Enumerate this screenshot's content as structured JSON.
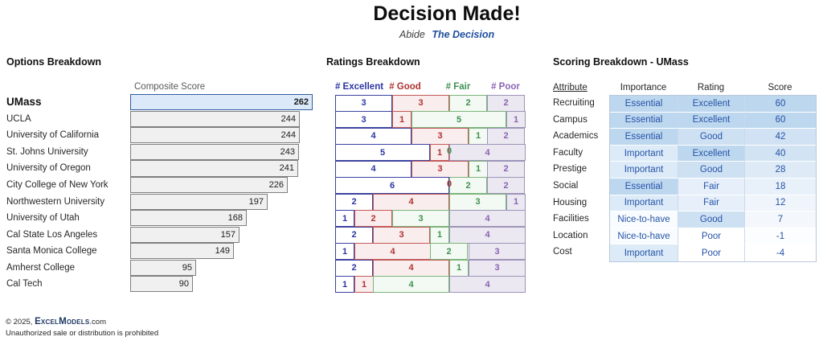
{
  "header": {
    "title": "Decision Made!",
    "subtitle_prefix": "Abide",
    "subtitle_emphasis": "The Decision"
  },
  "colors": {
    "accent_blue": "#1f4e9e",
    "highlight_bar_fill": "#dbe9f8",
    "highlight_bar_border": "#2f5b9d",
    "bar_fill": "#f0f0f0",
    "bar_border": "#7f7f7f",
    "cell_blue_dark": "#bdd7ee"
  },
  "chart_data": [
    {
      "type": "bar",
      "title": "Options Breakdown",
      "axis_label": "Composite Score",
      "orientation": "horizontal",
      "categories": [
        "UMass",
        "UCLA",
        "University of California",
        "St. Johns University",
        "University of Oregon",
        "City College of New York",
        "Northwestern University",
        "University of Utah",
        "Cal State Los Angeles",
        "Santa Monica College",
        "Amherst College",
        "Cal Tech"
      ],
      "values": [
        262,
        244,
        244,
        243,
        241,
        226,
        197,
        168,
        157,
        149,
        95,
        90
      ],
      "highlight_index": 0,
      "xlim": [
        0,
        262
      ]
    },
    {
      "type": "bar",
      "subtype": "stacked-horizontal",
      "title": "Ratings Breakdown",
      "categories": [
        "UMass",
        "UCLA",
        "University of California",
        "St. Johns University",
        "University of Oregon",
        "City College of New York",
        "Northwestern University",
        "University of Utah",
        "Cal State Los Angeles",
        "Santa Monica College",
        "Amherst College",
        "Cal Tech"
      ],
      "x_total": 10,
      "series": [
        {
          "name": "# Excellent",
          "text_color": "#2b35a3",
          "border_color": "#3c43a0",
          "fill_color": "#ffffff",
          "values": [
            3,
            3,
            4,
            5,
            4,
            6,
            2,
            1,
            2,
            1,
            2,
            1
          ]
        },
        {
          "name": "# Good",
          "text_color": "#b03232",
          "border_color": "#c25a5a",
          "fill_color": "#faeded",
          "values": [
            3,
            1,
            3,
            1,
            3,
            0,
            4,
            2,
            3,
            4,
            4,
            1
          ]
        },
        {
          "name": "# Fair",
          "text_color": "#3e9150",
          "border_color": "#7bb47b",
          "fill_color": "#f3faf3",
          "values": [
            2,
            5,
            1,
            0,
            1,
            2,
            3,
            3,
            1,
            2,
            1,
            4
          ]
        },
        {
          "name": "# Poor",
          "text_color": "#8a63b3",
          "border_color": "#9d94b8",
          "fill_color": "#ebe8f1",
          "values": [
            2,
            1,
            2,
            4,
            2,
            2,
            1,
            4,
            4,
            3,
            3,
            4
          ]
        }
      ]
    },
    {
      "type": "table",
      "title": "Scoring Breakdown - UMass",
      "columns": [
        "Attribute",
        "Importance",
        "Rating",
        "Score"
      ],
      "rows": [
        {
          "attribute": "Recruiting",
          "importance": "Essential",
          "rating": "Excellent",
          "score": 60,
          "importance_bg": "#bdd7ee",
          "rating_bg": "#bdd7ee",
          "score_bg": "#bdd7ee"
        },
        {
          "attribute": "Campus",
          "importance": "Essential",
          "rating": "Excellent",
          "score": 60,
          "importance_bg": "#bdd7ee",
          "rating_bg": "#bdd7ee",
          "score_bg": "#bdd7ee"
        },
        {
          "attribute": "Academics",
          "importance": "Essential",
          "rating": "Good",
          "score": 42,
          "importance_bg": "#bdd7ee",
          "rating_bg": "#cee1f3",
          "score_bg": "#d0e2f3"
        },
        {
          "attribute": "Faculty",
          "importance": "Important",
          "rating": "Excellent",
          "score": 40,
          "importance_bg": "#dcebf7",
          "rating_bg": "#bdd7ee",
          "score_bg": "#d2e3f3"
        },
        {
          "attribute": "Prestige",
          "importance": "Important",
          "rating": "Good",
          "score": 28,
          "importance_bg": "#dcebf7",
          "rating_bg": "#cee1f3",
          "score_bg": "#deebf6"
        },
        {
          "attribute": "Social",
          "importance": "Essential",
          "rating": "Fair",
          "score": 18,
          "importance_bg": "#bdd7ee",
          "rating_bg": "#e7f0fa",
          "score_bg": "#e8f1f9"
        },
        {
          "attribute": "Housing",
          "importance": "Important",
          "rating": "Fair",
          "score": 12,
          "importance_bg": "#dcebf7",
          "rating_bg": "#e7f0fa",
          "score_bg": "#eff5fb"
        },
        {
          "attribute": "Facilities",
          "importance": "Nice-to-have",
          "rating": "Good",
          "score": 7,
          "importance_bg": "#f9fcfe",
          "rating_bg": "#cee1f3",
          "score_bg": "#f4f8fc"
        },
        {
          "attribute": "Location",
          "importance": "Nice-to-have",
          "rating": "Poor",
          "score": -1,
          "importance_bg": "#f9fcfe",
          "rating_bg": "#ffffff",
          "score_bg": "#fcfdfe"
        },
        {
          "attribute": "Cost",
          "importance": "Important",
          "rating": "Poor",
          "score": -4,
          "importance_bg": "#dcebf7",
          "rating_bg": "#ffffff",
          "score_bg": "#ffffff"
        }
      ]
    }
  ],
  "footer": {
    "copyright_prefix": "© 2025, ",
    "brand": "ExcelModels",
    "brand_suffix": ".com",
    "notice": "Unauthorized sale or distribution is prohibited"
  }
}
